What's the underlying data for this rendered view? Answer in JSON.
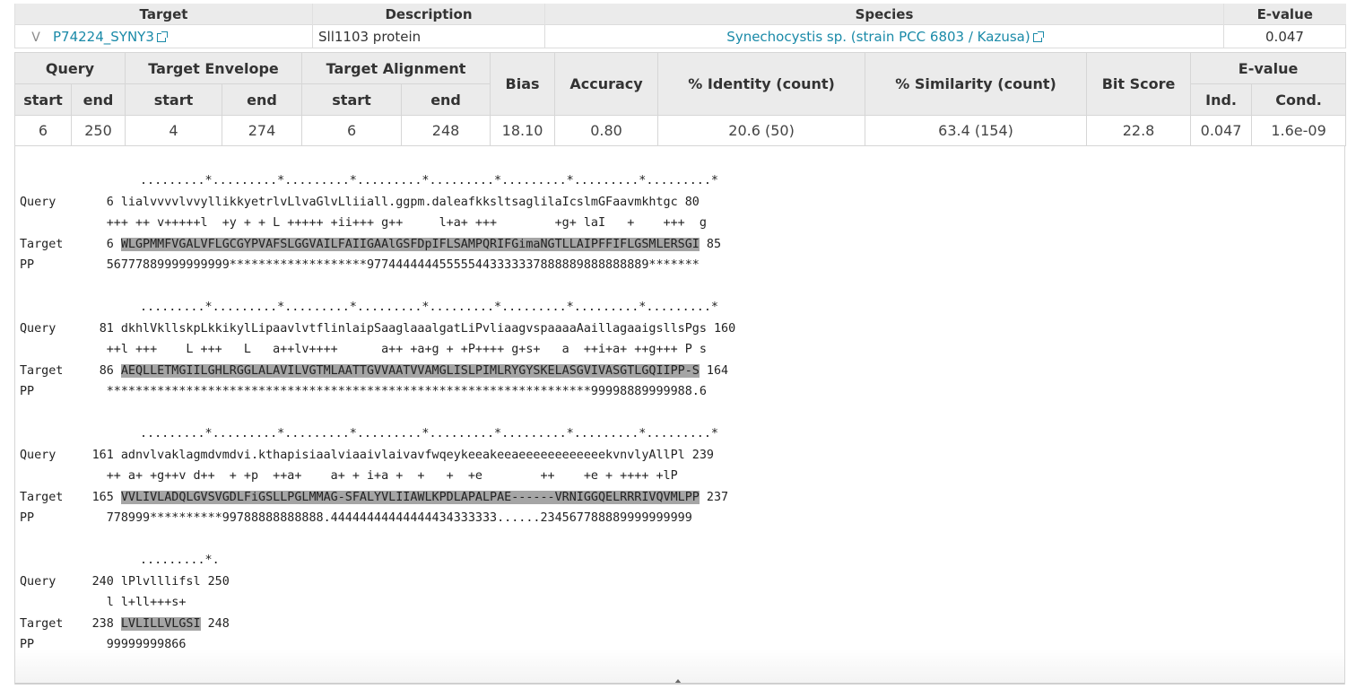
{
  "hit_table": {
    "headers": [
      "Target",
      "Description",
      "Species",
      "E-value"
    ],
    "row": {
      "expand": "V",
      "target": "P74224_SYNY3",
      "description": "Sll1103 protein",
      "species": "Synechocystis sp. (strain PCC 6803 / Kazusa)",
      "evalue": "0.047"
    }
  },
  "domain_table": {
    "groups": {
      "query": "Query",
      "target_envelope": "Target Envelope",
      "target_alignment": "Target Alignment",
      "bias": "Bias",
      "accuracy": "Accuracy",
      "identity": "% Identity (count)",
      "similarity": "% Similarity (count)",
      "bit_score": "Bit Score",
      "evalue": "E-value"
    },
    "subheaders": {
      "start": "start",
      "end": "end",
      "ind": "Ind.",
      "cond": "Cond."
    },
    "row": [
      "6",
      "250",
      "4",
      "274",
      "6",
      "248",
      "18.10",
      "0.80",
      "20.6 (50)",
      "63.4 (154)",
      "22.8",
      "0.047",
      "1.6e-09"
    ]
  },
  "alignment": {
    "blocks": [
      {
        "ruler": ".........*.........*.........*.........*.........*.........*.........*.........*",
        "query_label": "Query",
        "query_start": "6",
        "query_seq": "lialvvvvlvvyllikkyetrlvLlvaGlvLliiall.ggpm.daleafkksltsaglilaIcslmGFaavmkhtgc",
        "query_end": "80",
        "match": "+++ ++ v+++++l  +y + + L +++++ +ii+++ g++     l+a+ +++        +g+ laI   +    +++  g",
        "target_label": "Target",
        "target_start": "6",
        "target_seq": "WLGPMMFVGALVFLGCGYPVAFSLGGVAILFAIIGAAlGSFDpIFLSAMPQRIFGimaNGTLLAIPFFIFLGSMLERSGI",
        "target_end": "85",
        "pp_label": "PP",
        "pp": "56777889999999999*******************977444444455555443333337888889888888889*******"
      },
      {
        "ruler": ".........*.........*.........*.........*.........*.........*.........*.........*",
        "query_label": "Query",
        "query_start": "81",
        "query_seq": "dkhlVkllskpLkkikylLipaavlvtflinlaipSaaglaaalgatLiPvliaagvspaaaaAaillagaaigsllsPgs",
        "query_end": "160",
        "match": "++l +++    L +++   L   a++lv++++      a++ +a+g + +P++++ g+s+   a  ++i+a+ ++g+++ P s",
        "target_label": "Target",
        "target_start": "86",
        "target_seq": "AEQLLETMGIILGHLRGGLALAVILVGTMLAATTGVVAATVVAMGLISLPIMLRYGYSKELASGVIVASGTLGQIIPP-S",
        "target_end": "164",
        "pp_label": "PP",
        "pp": "*******************************************************************99998889999988.6"
      },
      {
        "ruler": ".........*.........*.........*.........*.........*.........*.........*.........*",
        "query_label": "Query",
        "query_start": "161",
        "query_seq": "adnvlvaklagmdvmdvi.kthapisiaalviaaivlaivavfwqeykeeakeeaeeeeeeeeeeeekvnvlyAllPl",
        "query_end": "239",
        "match": "++ a+ +g++v d++  + +p  ++a+    a+ + i+a +  +   +  +e        ++    +e + ++++ +lP",
        "target_label": "Target",
        "target_start": "165",
        "target_seq": "VVLIVLADQLGVSVGDLFiGSLLPGLMMAG-SFALYVLIIAWLKPDLAPALPAE------VRNIGGQELRRRIVQVMLPP",
        "target_end": "237",
        "pp_label": "PP",
        "pp": "778999**********99788888888888.44444444444444434333333......234567788889999999999"
      },
      {
        "ruler": ".........*.",
        "query_label": "Query",
        "query_start": "240",
        "query_seq": "lPlvlllifsl",
        "query_end": "250",
        "match": "l l+ll+++s+",
        "target_label": "Target",
        "target_start": "238",
        "target_seq": "LVLILLVLGSI",
        "target_end": "248",
        "pp_label": "PP",
        "pp": "99999999866"
      }
    ]
  }
}
